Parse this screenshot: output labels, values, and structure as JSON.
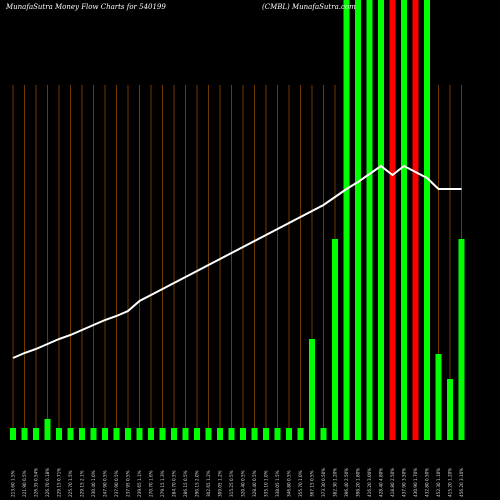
{
  "chart_data": {
    "type": "bar",
    "title": "MunafaSutra  Money Flow  Charts for 540199",
    "subtitle": "(CMBL) MunafaSutra.com",
    "categories": [
      "213.60 1.5%",
      "221.90 0.5%",
      "226.35 0.54%",
      "226.70 0.18%",
      "229.15 0.71%",
      "225.70 1.5%",
      "229.15 2.1%",
      "230.40 1.0%",
      "247.90 0.5%",
      "237.90 0.5%",
      "237.95 0.5%",
      "239.65 1.1%",
      "270.70 1.6%",
      "279.15 1.3%",
      "284.70 0.5%",
      "286.15 0.5%",
      "290.15 2.0%",
      "302.65 1.2%",
      "309.05 1.2%",
      "315.25 0.5%",
      "320.40 0.5%",
      "328.40 0.5%",
      "335.10 1.0%",
      "338.05 1.5%",
      "346.80 0.5%",
      "355.70 1.0%",
      "367.15 0.5%",
      "373.30 0.50%",
      "382.30 1.20%",
      "396.40 2.50%",
      "398.20 1.80%",
      "416.20 3.00%",
      "428.40 4.80%",
      "418.80 2.50%",
      "437.90 3.50%",
      "430.90 1.70%",
      "432.80 0.50%",
      "452.30 1.10%",
      "415.20 1.20%",
      "456.20 3.10%"
    ],
    "series": [
      {
        "name": "money flow",
        "values": [
          12,
          12,
          12,
          21,
          12,
          12,
          12,
          12,
          12,
          12,
          12,
          12,
          12,
          12,
          12,
          12,
          12,
          12,
          12,
          12,
          12,
          12,
          12,
          12,
          12,
          12,
          101,
          12,
          201,
          440,
          440,
          440,
          440,
          440,
          440,
          440,
          440,
          86,
          61,
          201
        ],
        "colors": [
          "#00ff00",
          "#00ff00",
          "#00ff00",
          "#00ff00",
          "#00ff00",
          "#00ff00",
          "#00ff00",
          "#00ff00",
          "#00ff00",
          "#00ff00",
          "#00ff00",
          "#00ff00",
          "#00ff00",
          "#00ff00",
          "#00ff00",
          "#00ff00",
          "#00ff00",
          "#00ff00",
          "#00ff00",
          "#00ff00",
          "#00ff00",
          "#00ff00",
          "#00ff00",
          "#00ff00",
          "#00ff00",
          "#00ff00",
          "#00ff00",
          "#00ff00",
          "#00ff00",
          "#00ff00",
          "#00ff00",
          "#00ff00",
          "#00ff00",
          "#ff0000",
          "#00ff00",
          "#ff0000",
          "#00ff00",
          "#00ff00",
          "#00ff00",
          "#00ff00"
        ]
      },
      {
        "name": "price",
        "type": "line",
        "color": "#ffffff",
        "values": [
          82,
          87,
          91,
          96,
          101,
          105,
          110,
          115,
          120,
          124,
          129,
          139,
          145,
          151,
          157,
          163,
          169,
          175,
          181,
          187,
          193,
          199,
          205,
          211,
          217,
          223,
          229,
          235,
          243,
          251,
          258,
          266,
          274,
          265,
          274,
          268,
          262,
          251,
          251,
          251
        ]
      }
    ],
    "ylim": [
      0,
      440
    ]
  }
}
